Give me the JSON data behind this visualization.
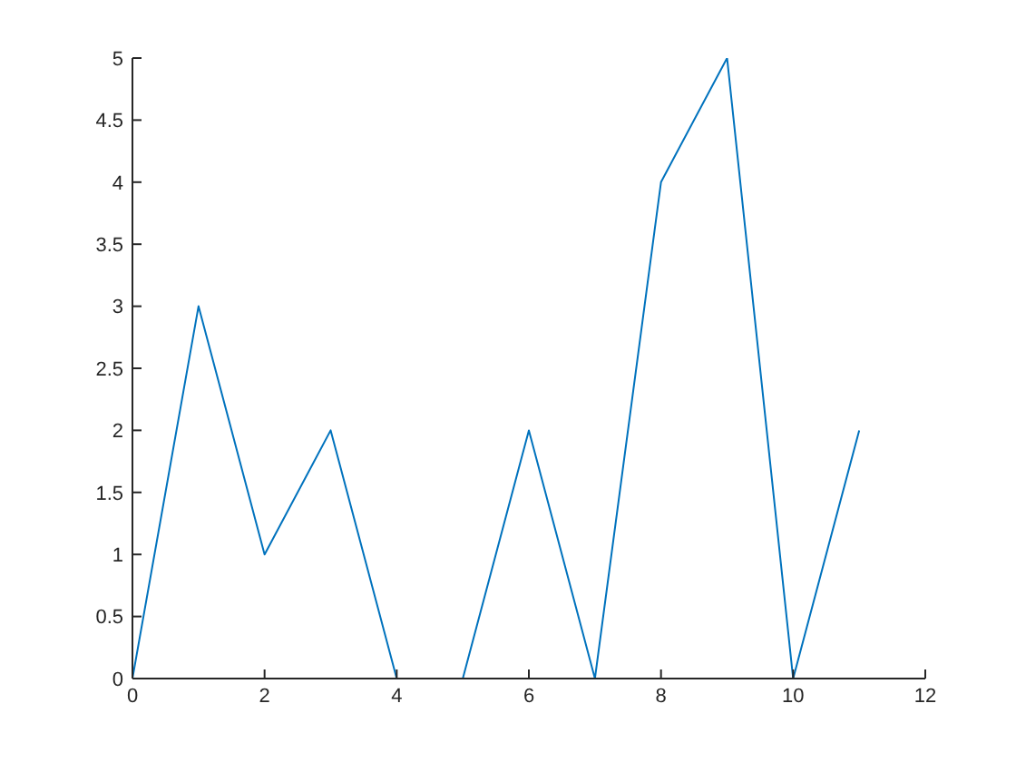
{
  "chart_data": {
    "type": "line",
    "x": [
      0,
      1,
      2,
      3,
      4,
      5,
      6,
      7,
      8,
      9,
      10,
      11
    ],
    "series": [
      {
        "color": "#0072bd",
        "values": [
          0,
          3,
          1,
          2,
          0,
          0,
          2,
          0,
          4,
          5,
          0,
          2
        ]
      }
    ],
    "xlim": [
      0,
      12
    ],
    "xticks": [
      0,
      2,
      4,
      6,
      8,
      10,
      12
    ],
    "ylim": [
      0,
      5
    ],
    "yticks": [
      0,
      0.5,
      1,
      1.5,
      2,
      2.5,
      3,
      3.5,
      4,
      4.5,
      5
    ]
  }
}
